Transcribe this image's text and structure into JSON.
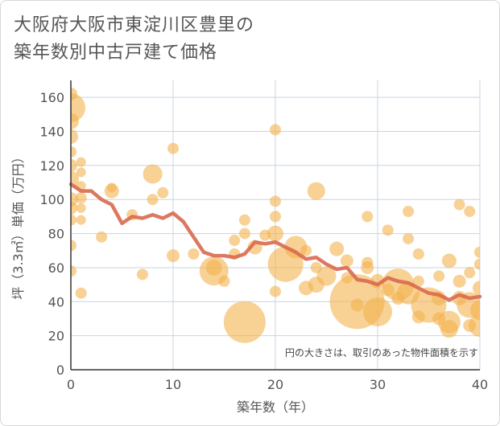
{
  "chart_data": {
    "type": "scatter",
    "title": "大阪府大阪市東淀川区豊里の\n築年数別中古戸建て価格",
    "xlabel": "築年数（年）",
    "ylabel": "坪（3.3㎡）単価（万円）",
    "xlim": [
      0,
      40
    ],
    "ylim": [
      0,
      170
    ],
    "x_ticks": [
      0,
      10,
      20,
      30,
      40
    ],
    "y_ticks": [
      0,
      20,
      40,
      60,
      80,
      100,
      120,
      140,
      160
    ],
    "grid": true,
    "note": "円の大きさは、取引のあった物件面積を示す",
    "colors": {
      "bubble": "#f3b24f",
      "line": "#d9694f",
      "grid": "#c8d4e0",
      "axis": "#333333"
    },
    "trend_line": {
      "x": [
        0,
        1,
        2,
        3,
        4,
        5,
        6,
        7,
        8,
        9,
        10,
        11,
        12,
        13,
        14,
        15,
        16,
        17,
        18,
        19,
        20,
        21,
        22,
        23,
        24,
        25,
        26,
        27,
        28,
        29,
        30,
        31,
        32,
        33,
        34,
        35,
        36,
        37,
        38,
        39,
        40
      ],
      "y": [
        109,
        105,
        105,
        100,
        97,
        86,
        90,
        89,
        91,
        89,
        92,
        87,
        78,
        69,
        67,
        67,
        66,
        68,
        75,
        74,
        75,
        72,
        69,
        65,
        66,
        62,
        59,
        60,
        53,
        52,
        50,
        54,
        52,
        51,
        48,
        45,
        44,
        41,
        44,
        42,
        43
      ]
    },
    "bubbles": [
      {
        "x": 0,
        "y": 154,
        "r": 18
      },
      {
        "x": 0,
        "y": 162,
        "r": 8
      },
      {
        "x": 0,
        "y": 146,
        "r": 10
      },
      {
        "x": 0,
        "y": 137,
        "r": 9
      },
      {
        "x": 0,
        "y": 128,
        "r": 7
      },
      {
        "x": 0,
        "y": 120,
        "r": 8
      },
      {
        "x": 0,
        "y": 112,
        "r": 10
      },
      {
        "x": 0,
        "y": 100,
        "r": 9
      },
      {
        "x": 0,
        "y": 95,
        "r": 8
      },
      {
        "x": 0,
        "y": 88,
        "r": 7
      },
      {
        "x": 0,
        "y": 73,
        "r": 7
      },
      {
        "x": 0,
        "y": 58,
        "r": 7
      },
      {
        "x": 1,
        "y": 122,
        "r": 6
      },
      {
        "x": 1,
        "y": 116,
        "r": 6
      },
      {
        "x": 1,
        "y": 108,
        "r": 6
      },
      {
        "x": 1,
        "y": 101,
        "r": 7
      },
      {
        "x": 1,
        "y": 95,
        "r": 6
      },
      {
        "x": 1,
        "y": 88,
        "r": 6
      },
      {
        "x": 1,
        "y": 45,
        "r": 7
      },
      {
        "x": 4,
        "y": 105,
        "r": 9
      },
      {
        "x": 4,
        "y": 107,
        "r": 6
      },
      {
        "x": 3,
        "y": 78,
        "r": 7
      },
      {
        "x": 6,
        "y": 91,
        "r": 7
      },
      {
        "x": 7,
        "y": 56,
        "r": 7
      },
      {
        "x": 8,
        "y": 115,
        "r": 12
      },
      {
        "x": 8,
        "y": 100,
        "r": 7
      },
      {
        "x": 9,
        "y": 104,
        "r": 7
      },
      {
        "x": 10,
        "y": 130,
        "r": 7
      },
      {
        "x": 10,
        "y": 67,
        "r": 8
      },
      {
        "x": 12,
        "y": 68,
        "r": 7
      },
      {
        "x": 14,
        "y": 60,
        "r": 10
      },
      {
        "x": 14,
        "y": 58,
        "r": 18
      },
      {
        "x": 15,
        "y": 52,
        "r": 7
      },
      {
        "x": 16,
        "y": 76,
        "r": 7
      },
      {
        "x": 16,
        "y": 68,
        "r": 7
      },
      {
        "x": 17,
        "y": 88,
        "r": 7
      },
      {
        "x": 17,
        "y": 80,
        "r": 7
      },
      {
        "x": 17,
        "y": 28,
        "r": 26
      },
      {
        "x": 18,
        "y": 72,
        "r": 9
      },
      {
        "x": 19,
        "y": 79,
        "r": 7
      },
      {
        "x": 20,
        "y": 141,
        "r": 7
      },
      {
        "x": 20,
        "y": 99,
        "r": 7
      },
      {
        "x": 20,
        "y": 90,
        "r": 7
      },
      {
        "x": 20,
        "y": 80,
        "r": 10
      },
      {
        "x": 20,
        "y": 46,
        "r": 7
      },
      {
        "x": 21,
        "y": 62,
        "r": 22
      },
      {
        "x": 22,
        "y": 72,
        "r": 14
      },
      {
        "x": 23,
        "y": 70,
        "r": 7
      },
      {
        "x": 23,
        "y": 48,
        "r": 9
      },
      {
        "x": 24,
        "y": 105,
        "r": 11
      },
      {
        "x": 24,
        "y": 60,
        "r": 7
      },
      {
        "x": 24,
        "y": 50,
        "r": 10
      },
      {
        "x": 25,
        "y": 55,
        "r": 12
      },
      {
        "x": 26,
        "y": 71,
        "r": 9
      },
      {
        "x": 27,
        "y": 64,
        "r": 8
      },
      {
        "x": 27,
        "y": 54,
        "r": 7
      },
      {
        "x": 28,
        "y": 40,
        "r": 34
      },
      {
        "x": 28,
        "y": 38,
        "r": 8
      },
      {
        "x": 29,
        "y": 90,
        "r": 7
      },
      {
        "x": 29,
        "y": 63,
        "r": 7
      },
      {
        "x": 29,
        "y": 60,
        "r": 8
      },
      {
        "x": 30,
        "y": 34,
        "r": 18
      },
      {
        "x": 30,
        "y": 52,
        "r": 9
      },
      {
        "x": 31,
        "y": 82,
        "r": 7
      },
      {
        "x": 31,
        "y": 47,
        "r": 8
      },
      {
        "x": 32,
        "y": 50,
        "r": 20
      },
      {
        "x": 32,
        "y": 42,
        "r": 8
      },
      {
        "x": 33,
        "y": 93,
        "r": 7
      },
      {
        "x": 33,
        "y": 77,
        "r": 7
      },
      {
        "x": 33,
        "y": 45,
        "r": 14
      },
      {
        "x": 34,
        "y": 68,
        "r": 7
      },
      {
        "x": 34,
        "y": 52,
        "r": 7
      },
      {
        "x": 34,
        "y": 31,
        "r": 8
      },
      {
        "x": 35,
        "y": 38,
        "r": 22
      },
      {
        "x": 36,
        "y": 55,
        "r": 7
      },
      {
        "x": 36,
        "y": 42,
        "r": 9
      },
      {
        "x": 36,
        "y": 30,
        "r": 8
      },
      {
        "x": 37,
        "y": 64,
        "r": 9
      },
      {
        "x": 37,
        "y": 28,
        "r": 14
      },
      {
        "x": 37,
        "y": 24,
        "r": 11
      },
      {
        "x": 38,
        "y": 97,
        "r": 7
      },
      {
        "x": 38,
        "y": 52,
        "r": 8
      },
      {
        "x": 38,
        "y": 42,
        "r": 9
      },
      {
        "x": 39,
        "y": 93,
        "r": 7
      },
      {
        "x": 39,
        "y": 57,
        "r": 7
      },
      {
        "x": 39,
        "y": 38,
        "r": 16
      },
      {
        "x": 39,
        "y": 26,
        "r": 8
      },
      {
        "x": 40,
        "y": 69,
        "r": 7
      },
      {
        "x": 40,
        "y": 62,
        "r": 7
      },
      {
        "x": 40,
        "y": 48,
        "r": 9
      },
      {
        "x": 40,
        "y": 35,
        "r": 12
      },
      {
        "x": 40,
        "y": 26,
        "r": 14
      }
    ]
  }
}
